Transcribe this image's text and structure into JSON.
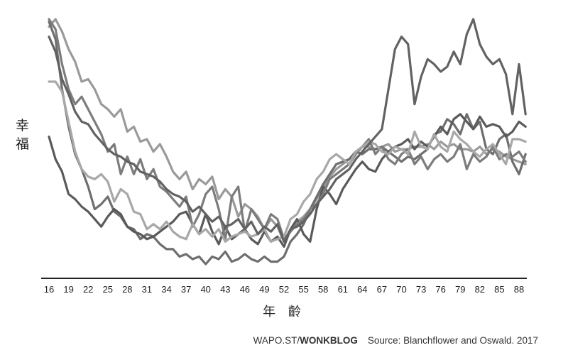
{
  "chart_data": {
    "type": "line",
    "title": "",
    "ylabel_chars": [
      "幸",
      "福"
    ],
    "xlabel": "年 齡",
    "x_ticks": [
      16,
      19,
      22,
      25,
      28,
      31,
      34,
      37,
      40,
      43,
      46,
      49,
      52,
      55,
      58,
      61,
      64,
      67,
      70,
      73,
      76,
      79,
      82,
      85,
      88
    ],
    "xlim": [
      15,
      90
    ],
    "ylim": [
      0,
      100
    ],
    "grid": false,
    "legend": "none",
    "series_colors": [
      "#9a9a9a",
      "#6e6e6e",
      "#5a5a5a",
      "#7c7c7c",
      "#a8a8a8",
      "#626262"
    ],
    "series": [
      {
        "x": [
          16,
          17,
          18,
          19,
          20,
          21,
          22,
          23,
          24,
          25,
          26,
          27,
          28,
          29,
          30,
          31,
          32,
          33,
          34,
          35,
          36,
          37,
          38,
          39,
          40,
          41,
          42,
          43,
          44,
          45,
          46,
          47,
          48,
          49,
          50,
          51,
          52,
          53,
          54,
          55,
          56,
          57,
          58,
          59,
          60,
          61,
          62,
          63,
          64,
          65,
          66,
          67,
          68,
          69,
          70,
          71,
          72,
          73,
          74,
          75,
          76,
          77,
          78,
          79,
          80,
          81,
          82,
          83,
          84,
          85,
          86,
          87,
          88,
          89
        ],
        "values": [
          95,
          98,
          93,
          86,
          81,
          73,
          74,
          70,
          64,
          62,
          59,
          62,
          53,
          55,
          49,
          50,
          45,
          48,
          43,
          37,
          34,
          37,
          30,
          34,
          32,
          35,
          26,
          30,
          27,
          19,
          24,
          22,
          19,
          14,
          18,
          15,
          9,
          13,
          17,
          19,
          22,
          26,
          30,
          35,
          38,
          40,
          42,
          45,
          47,
          47,
          46,
          47,
          48,
          45,
          46,
          46,
          47,
          47,
          48,
          46,
          49,
          47,
          48,
          46,
          46,
          45,
          47,
          44,
          46,
          45,
          43,
          42,
          41,
          40
        ]
      },
      {
        "x": [
          16,
          17,
          18,
          19,
          20,
          21,
          22,
          23,
          24,
          25,
          26,
          27,
          28,
          29,
          30,
          31,
          32,
          33,
          34,
          35,
          36,
          37,
          38,
          39,
          40,
          41,
          42,
          43,
          44,
          45,
          46,
          47,
          48,
          49,
          50,
          51,
          52,
          53,
          54,
          55,
          56,
          57,
          58,
          59,
          60,
          61,
          62,
          63,
          64,
          65,
          66,
          67,
          68,
          69,
          70,
          71,
          72,
          73,
          74,
          75,
          76,
          77,
          78,
          79,
          80,
          81,
          82,
          83,
          84,
          85,
          86,
          87,
          88,
          89
        ],
        "values": [
          97,
          90,
          70,
          55,
          44,
          38,
          31,
          22,
          24,
          27,
          21,
          19,
          15,
          14,
          10,
          12,
          11,
          8,
          6,
          6,
          3,
          4,
          2,
          3,
          0,
          3,
          2,
          5,
          1,
          2,
          4,
          2,
          1,
          3,
          1,
          1,
          3,
          9,
          12,
          16,
          22,
          27,
          32,
          36,
          40,
          41,
          42,
          45,
          44,
          46,
          46,
          47,
          45,
          43,
          41,
          43,
          42,
          44,
          46,
          52,
          53,
          58,
          56,
          52,
          60,
          54,
          57,
          46,
          44,
          50,
          52,
          41,
          36,
          44
        ]
      },
      {
        "x": [
          16,
          17,
          18,
          19,
          20,
          21,
          22,
          23,
          24,
          25,
          26,
          27,
          28,
          29,
          30,
          31,
          32,
          33,
          34,
          35,
          36,
          37,
          38,
          39,
          40,
          41,
          42,
          43,
          44,
          45,
          46,
          47,
          48,
          49,
          50,
          51,
          52,
          53,
          54,
          55,
          56,
          57,
          58,
          59,
          60,
          61,
          62,
          63,
          64,
          65,
          66,
          67,
          68,
          69,
          70,
          71,
          72,
          73,
          74,
          75,
          76,
          77,
          78,
          79,
          80,
          81,
          82,
          83,
          84,
          85,
          86,
          87,
          88,
          89
        ],
        "values": [
          51,
          42,
          37,
          28,
          26,
          23,
          21,
          18,
          15,
          19,
          22,
          20,
          15,
          13,
          12,
          10,
          11,
          13,
          15,
          17,
          20,
          21,
          16,
          12,
          20,
          13,
          8,
          15,
          10,
          12,
          14,
          10,
          8,
          13,
          9,
          11,
          7,
          14,
          18,
          12,
          9,
          22,
          31,
          28,
          24,
          30,
          34,
          38,
          41,
          38,
          37,
          42,
          45,
          47,
          48,
          50,
          46,
          49,
          47,
          51,
          55,
          52,
          58,
          60,
          57,
          54,
          59,
          55,
          56,
          55,
          51,
          53,
          57,
          55
        ]
      },
      {
        "x": [
          16,
          17,
          18,
          19,
          20,
          21,
          22,
          23,
          24,
          25,
          26,
          27,
          28,
          29,
          30,
          31,
          32,
          33,
          34,
          35,
          36,
          37,
          38,
          39,
          40,
          41,
          42,
          43,
          44,
          45,
          46,
          47,
          48,
          49,
          50,
          51,
          52,
          53,
          54,
          55,
          56,
          57,
          58,
          59,
          60,
          61,
          62,
          63,
          64,
          65,
          66,
          67,
          68,
          69,
          70,
          71,
          72,
          73,
          74,
          75,
          76,
          77,
          78,
          79,
          80,
          81,
          82,
          83,
          84,
          85,
          86,
          87,
          88,
          89
        ],
        "values": [
          98,
          94,
          80,
          70,
          64,
          67,
          62,
          57,
          52,
          45,
          48,
          36,
          43,
          36,
          42,
          34,
          38,
          31,
          29,
          26,
          23,
          27,
          15,
          20,
          28,
          31,
          22,
          10,
          27,
          31,
          13,
          22,
          18,
          14,
          20,
          18,
          10,
          13,
          16,
          18,
          22,
          24,
          28,
          34,
          36,
          38,
          40,
          44,
          47,
          50,
          44,
          47,
          42,
          40,
          44,
          46,
          40,
          43,
          38,
          42,
          44,
          41,
          43,
          48,
          38,
          44,
          41,
          43,
          47,
          42,
          44,
          43,
          45,
          41
        ]
      },
      {
        "x": [
          16,
          17,
          18,
          19,
          20,
          21,
          22,
          23,
          24,
          25,
          26,
          27,
          28,
          29,
          30,
          31,
          32,
          33,
          34,
          35,
          36,
          37,
          38,
          39,
          40,
          41,
          42,
          43,
          44,
          45,
          46,
          47,
          48,
          49,
          50,
          51,
          52,
          53,
          54,
          55,
          56,
          57,
          58,
          59,
          60,
          61,
          62,
          63,
          64,
          65,
          66,
          67,
          68,
          69,
          70,
          71,
          72,
          73,
          74,
          75,
          76,
          77,
          78,
          79,
          80,
          81,
          82,
          83,
          84,
          85,
          86,
          87,
          88,
          89
        ],
        "values": [
          73,
          73,
          69,
          57,
          45,
          38,
          35,
          34,
          36,
          33,
          25,
          30,
          28,
          21,
          20,
          14,
          16,
          14,
          17,
          13,
          11,
          10,
          16,
          12,
          14,
          11,
          14,
          9,
          11,
          12,
          13,
          11,
          12,
          14,
          9,
          10,
          11,
          18,
          20,
          25,
          28,
          34,
          37,
          42,
          44,
          42,
          40,
          45,
          47,
          49,
          48,
          45,
          44,
          47,
          46,
          44,
          53,
          47,
          46,
          52,
          47,
          45,
          53,
          50,
          48,
          45,
          43,
          46,
          48,
          44,
          40,
          50,
          50,
          49
        ]
      },
      {
        "x": [
          16,
          17,
          18,
          19,
          20,
          21,
          22,
          23,
          24,
          25,
          26,
          27,
          28,
          29,
          30,
          31,
          32,
          33,
          34,
          35,
          36,
          37,
          38,
          39,
          40,
          41,
          42,
          43,
          44,
          45,
          46,
          47,
          48,
          49,
          50,
          51,
          52,
          53,
          54,
          55,
          56,
          57,
          58,
          59,
          60,
          61,
          62,
          63,
          64,
          65,
          66,
          67,
          68,
          69,
          70,
          71,
          72,
          73,
          74,
          75,
          76,
          77,
          78,
          79,
          80,
          81,
          82,
          83,
          84,
          85,
          86,
          87,
          88,
          89
        ],
        "values": [
          91,
          85,
          74,
          68,
          61,
          57,
          56,
          52,
          49,
          46,
          44,
          43,
          41,
          40,
          37,
          36,
          35,
          33,
          30,
          28,
          27,
          25,
          21,
          23,
          20,
          17,
          19,
          15,
          16,
          18,
          14,
          17,
          12,
          15,
          13,
          16,
          9,
          14,
          15,
          17,
          20,
          24,
          27,
          30,
          34,
          36,
          38,
          42,
          45,
          48,
          51,
          54,
          70,
          86,
          91,
          88,
          64,
          75,
          82,
          80,
          77,
          79,
          85,
          80,
          92,
          98,
          88,
          83,
          80,
          82,
          76,
          60,
          80,
          60
        ]
      }
    ],
    "annotations": [
      {
        "x": 82,
        "text": ""
      }
    ]
  },
  "credit": {
    "brand_a": "WAPO.ST/",
    "brand_b": "WONKBLOG",
    "source": "Source: Blanchflower and Oswald. 2017"
  }
}
